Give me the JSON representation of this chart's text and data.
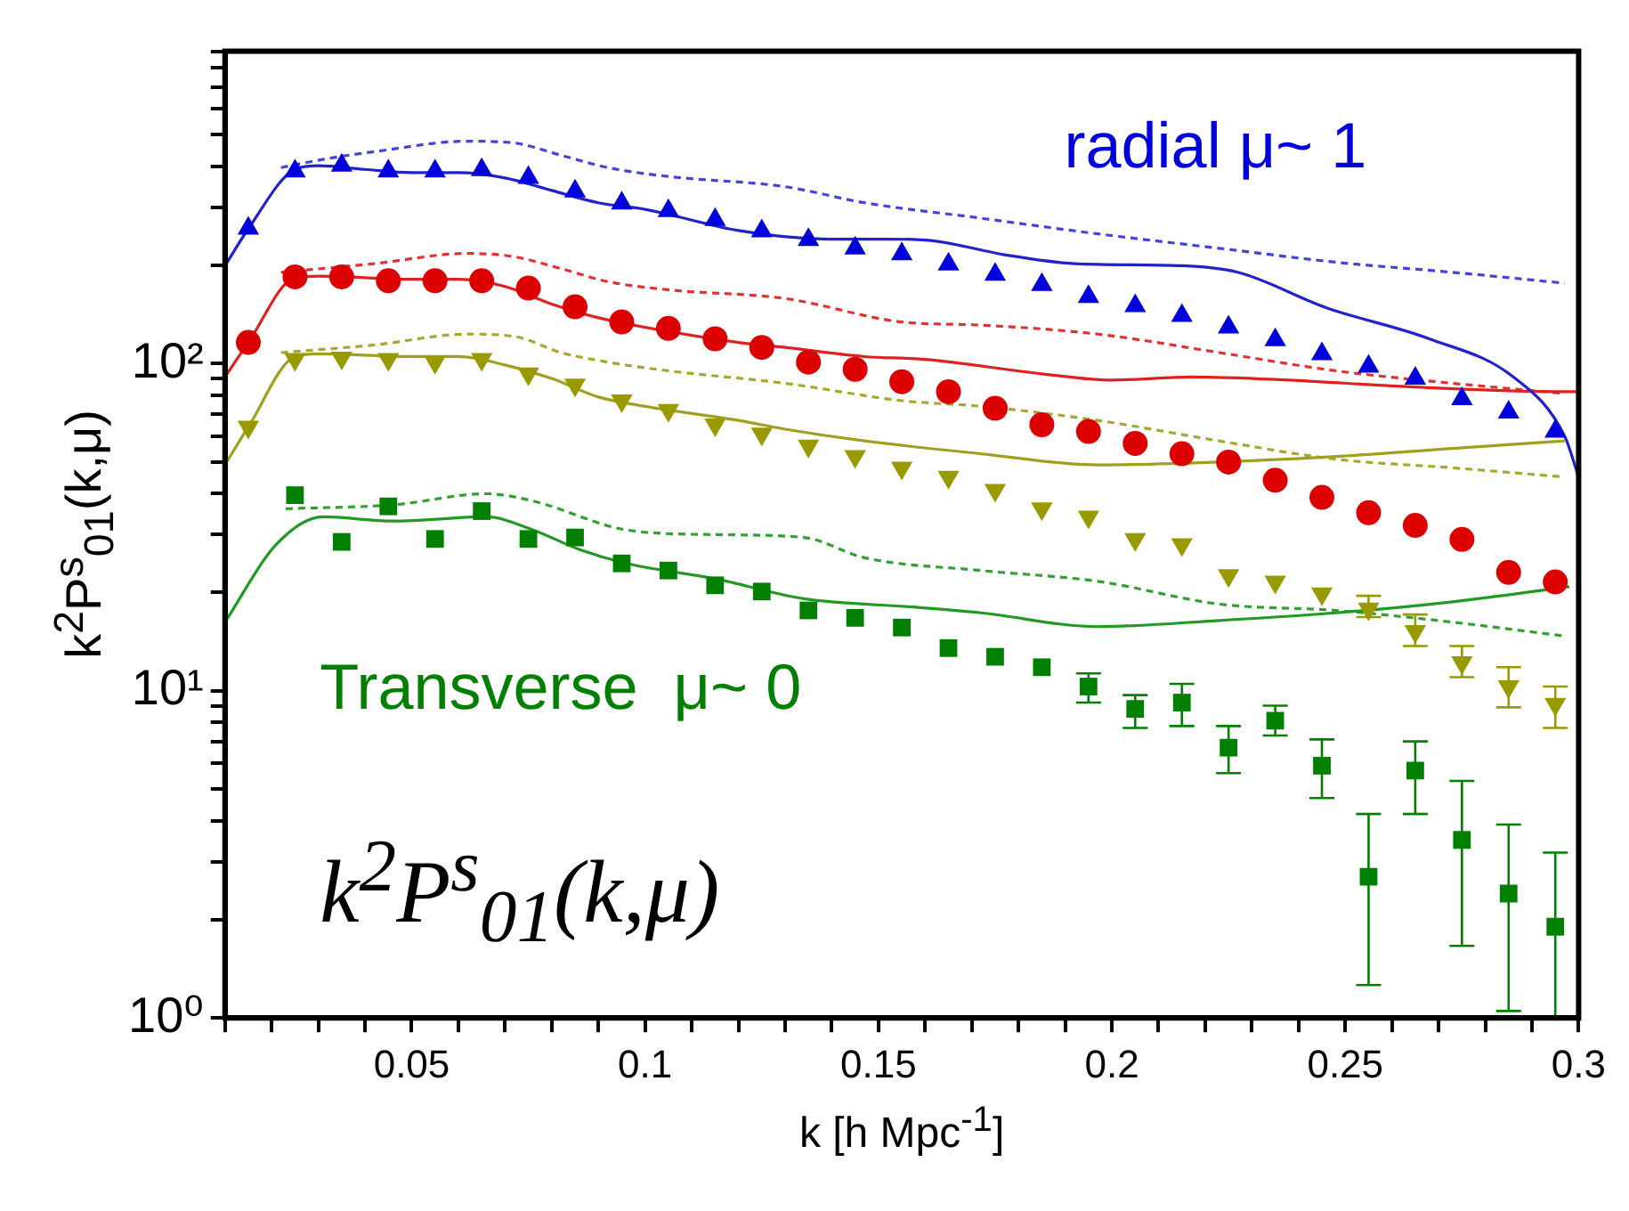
{
  "chart_data": {
    "type": "scatter",
    "xlabel": "k [h Mpc$^{-1}$]",
    "ylabel": "k$^{2}$P$^{s}$$_{01}$(k,μ)",
    "log": "y",
    "grid": false,
    "legend": false,
    "xlim": [
      0.01,
      0.3
    ],
    "xticks": [
      {
        "value": 0.01,
        "label": null
      },
      {
        "value": 0.02,
        "label": null
      },
      {
        "value": 0.03,
        "label": null
      },
      {
        "value": 0.04,
        "label": null
      },
      {
        "value": 0.05,
        "label": "0.05"
      },
      {
        "value": 0.06,
        "label": null
      },
      {
        "value": 0.07,
        "label": null
      },
      {
        "value": 0.08,
        "label": null
      },
      {
        "value": 0.09,
        "label": null
      },
      {
        "value": 0.1,
        "label": "0.1"
      },
      {
        "value": 0.11,
        "label": null
      },
      {
        "value": 0.12,
        "label": null
      },
      {
        "value": 0.13,
        "label": null
      },
      {
        "value": 0.14,
        "label": null
      },
      {
        "value": 0.15,
        "label": "0.15"
      },
      {
        "value": 0.16,
        "label": null
      },
      {
        "value": 0.17,
        "label": null
      },
      {
        "value": 0.18,
        "label": null
      },
      {
        "value": 0.19,
        "label": null
      },
      {
        "value": 0.2,
        "label": "0.2"
      },
      {
        "value": 0.21,
        "label": null
      },
      {
        "value": 0.22,
        "label": null
      },
      {
        "value": 0.23,
        "label": null
      },
      {
        "value": 0.24,
        "label": null
      },
      {
        "value": 0.25,
        "label": "0.25"
      },
      {
        "value": 0.26,
        "label": null
      },
      {
        "value": 0.27,
        "label": null
      },
      {
        "value": 0.28,
        "label": null
      },
      {
        "value": 0.29,
        "label": null
      },
      {
        "value": 0.3,
        "label": "0.3"
      }
    ],
    "ylim": [
      1,
      900
    ],
    "yticks": [
      {
        "value": 1,
        "label": "10⁰"
      },
      {
        "value": 2,
        "label": null
      },
      {
        "value": 3,
        "label": null
      },
      {
        "value": 4,
        "label": null
      },
      {
        "value": 5,
        "label": null
      },
      {
        "value": 6,
        "label": null
      },
      {
        "value": 7,
        "label": null
      },
      {
        "value": 8,
        "label": null
      },
      {
        "value": 9,
        "label": null
      },
      {
        "value": 10,
        "label": "10¹"
      },
      {
        "value": 20,
        "label": null
      },
      {
        "value": 30,
        "label": null
      },
      {
        "value": 40,
        "label": null
      },
      {
        "value": 50,
        "label": null
      },
      {
        "value": 60,
        "label": null
      },
      {
        "value": 70,
        "label": null
      },
      {
        "value": 80,
        "label": null
      },
      {
        "value": 90,
        "label": null
      },
      {
        "value": 100,
        "label": "10²"
      },
      {
        "value": 200,
        "label": null
      },
      {
        "value": 300,
        "label": null
      },
      {
        "value": 400,
        "label": null
      },
      {
        "value": 500,
        "label": null
      },
      {
        "value": 600,
        "label": null
      },
      {
        "value": 700,
        "label": null
      },
      {
        "value": 800,
        "label": null
      },
      {
        "value": 900,
        "label": null
      }
    ],
    "x": [
      0.015,
      0.025,
      0.035,
      0.045,
      0.055,
      0.065,
      0.075,
      0.085,
      0.095,
      0.105,
      0.115,
      0.125,
      0.135,
      0.145,
      0.155,
      0.165,
      0.175,
      0.185,
      0.195,
      0.205,
      0.215,
      0.225,
      0.235,
      0.245,
      0.255,
      0.265,
      0.275,
      0.285,
      0.295
    ],
    "series": [
      {
        "type": "scatter",
        "color": "#0000dd",
        "marker": "triangle",
        "values": [
          259,
          387,
          403,
          387,
          387,
          391,
          370,
          336,
          309,
          293,
          275,
          254,
          239,
          225,
          216,
          201,
          187,
          174,
          160,
          150,
          140,
          129,
          118,
          107,
          98,
          90,
          78,
          71,
          62
        ]
      },
      {
        "type": "scatter",
        "color": "#dd0000",
        "marker": "circle",
        "values": [
          116,
          184,
          184,
          179,
          179,
          179,
          170,
          149,
          134,
          128,
          119,
          112,
          101,
          96,
          88,
          82,
          73,
          65,
          62,
          57,
          53,
          50,
          44,
          39,
          35,
          32,
          29,
          23,
          21.5
        ]
      },
      {
        "type": "scatter",
        "color": "#999900",
        "marker": "triangle-down",
        "values": [
          64,
          103,
          104,
          103,
          101,
          103,
          93,
          86,
          77,
          72,
          65,
          61,
          56,
          52,
          48,
          45,
          41,
          36,
          34,
          29,
          28,
          22.5,
          21.5,
          19.8,
          17.8,
          15.2,
          12.2,
          10.3,
          9.1
        ],
        "errors": [
          null,
          null,
          null,
          null,
          null,
          null,
          null,
          null,
          null,
          null,
          null,
          null,
          null,
          null,
          null,
          null,
          null,
          null,
          null,
          null,
          null,
          null,
          null,
          null,
          [
            16.8,
            19.5
          ],
          [
            13.7,
            17.1
          ],
          [
            11.0,
            13.7
          ],
          [
            8.9,
            11.8
          ],
          [
            7.7,
            10.3
          ]
        ]
      },
      {
        "type": "scatter",
        "color": "#008000",
        "marker": "square",
        "values": [
          null,
          39.6,
          28.5,
          36.6,
          29.1,
          35.4,
          29.1,
          29.4,
          24.5,
          23.3,
          21.0,
          20.1,
          17.6,
          16.7,
          15.6,
          13.5,
          12.7,
          11.8,
          10.3,
          8.8,
          9.2,
          6.7,
          8.1,
          5.9,
          2.7,
          5.7,
          3.5,
          2.4,
          1.9
        ],
        "errors": [
          null,
          null,
          null,
          null,
          null,
          null,
          null,
          null,
          null,
          null,
          null,
          null,
          null,
          null,
          null,
          null,
          null,
          null,
          [
            9.2,
            11.3
          ],
          [
            7.7,
            9.7
          ],
          [
            7.8,
            10.5
          ],
          [
            5.6,
            7.8
          ],
          [
            7.3,
            9.0
          ],
          [
            4.7,
            7.1
          ],
          [
            1.26,
            4.2
          ],
          [
            4.2,
            7.0
          ],
          [
            1.66,
            5.3
          ],
          [
            1.05,
            3.9
          ],
          [
            1,
            3.2
          ]
        ]
      },
      {
        "type": "line",
        "color": "#2222cc",
        "line_style": "solid",
        "x": [
          0.01,
          0.015,
          0.025,
          0.03,
          0.04,
          0.05,
          0.06,
          0.07,
          0.08,
          0.09,
          0.1,
          0.12,
          0.14,
          0.152,
          0.162,
          0.177,
          0.192,
          0.215,
          0.227,
          0.246,
          0.268,
          0.286,
          0.297,
          0.3
        ],
        "values": [
          199,
          258,
          392,
          402,
          392,
          383,
          383,
          369,
          338,
          310,
          296,
          255,
          240,
          240,
          237,
          215,
          202,
          199,
          190,
          148,
          119,
          91,
          60,
          45
        ]
      },
      {
        "type": "line",
        "color": "#4444dd",
        "line_style": "dashed",
        "x": [
          0.022,
          0.032,
          0.042,
          0.062,
          0.072,
          0.082,
          0.092,
          0.105,
          0.13,
          0.147,
          0.172,
          0.197,
          0.223,
          0.248,
          0.273,
          0.297
        ],
        "values": [
          397,
          423,
          444,
          478,
          472,
          433,
          397,
          373,
          347,
          310,
          278,
          249,
          225,
          204,
          190,
          176
        ]
      },
      {
        "type": "line",
        "color": "#dd2222",
        "line_style": "solid",
        "x": [
          0.01,
          0.015,
          0.025,
          0.03,
          0.05,
          0.06,
          0.07,
          0.08,
          0.09,
          0.1,
          0.12,
          0.13,
          0.147,
          0.16,
          0.185,
          0.2,
          0.217,
          0.238,
          0.263,
          0.297,
          0.3
        ],
        "values": [
          91,
          116,
          183,
          185,
          181,
          181,
          172,
          152,
          138,
          129,
          116,
          112,
          105,
          103,
          93,
          89,
          91,
          89,
          85,
          82,
          82
        ]
      },
      {
        "type": "line",
        "color": "#dd3333",
        "line_style": "dashed",
        "x": [
          0.022,
          0.042,
          0.062,
          0.072,
          0.082,
          0.092,
          0.105,
          0.13,
          0.155,
          0.172,
          0.197,
          0.223,
          0.248,
          0.273,
          0.297
        ],
        "values": [
          190,
          202,
          217,
          212,
          195,
          178,
          168,
          158,
          134,
          131,
          123,
          108,
          95,
          87,
          81
        ]
      },
      {
        "type": "line",
        "color": "#a0a020",
        "line_style": "solid",
        "x": [
          0.01,
          0.015,
          0.025,
          0.03,
          0.05,
          0.06,
          0.07,
          0.08,
          0.09,
          0.1,
          0.12,
          0.13,
          0.147,
          0.172,
          0.197,
          0.223,
          0.248,
          0.273,
          0.297
        ],
        "values": [
          49,
          64,
          105,
          107,
          105,
          105,
          99,
          90,
          79,
          74,
          67,
          63,
          58,
          53,
          49,
          50,
          52,
          55,
          58
        ]
      },
      {
        "type": "line",
        "color": "#a8a830",
        "line_style": "dashed",
        "x": [
          0.022,
          0.042,
          0.062,
          0.072,
          0.082,
          0.092,
          0.105,
          0.13,
          0.155,
          0.172,
          0.197,
          0.223,
          0.248,
          0.273,
          0.297
        ],
        "values": [
          108,
          114,
          123,
          121,
          108,
          101,
          95,
          87,
          77,
          74,
          67,
          58,
          51,
          48,
          45
        ]
      },
      {
        "type": "line",
        "color": "#229922",
        "line_style": "solid",
        "x": [
          0.01,
          0.021,
          0.031,
          0.046,
          0.066,
          0.076,
          0.086,
          0.096,
          0.115,
          0.134,
          0.158,
          0.172,
          0.197,
          0.223,
          0.248,
          0.273,
          0.298
        ],
        "values": [
          16.2,
          28,
          34,
          33,
          34,
          31,
          27,
          24.5,
          22,
          19.1,
          18.0,
          17.3,
          15.7,
          16.4,
          17.3,
          18.7,
          20.8
        ]
      },
      {
        "type": "line",
        "color": "#33a033",
        "line_style": "dashed",
        "x": [
          0.023,
          0.046,
          0.066,
          0.076,
          0.096,
          0.115,
          0.134,
          0.147,
          0.172,
          0.197,
          0.223,
          0.248,
          0.273,
          0.297
        ],
        "values": [
          36,
          37,
          40,
          38,
          31,
          30,
          29.4,
          25.5,
          23.3,
          21.6,
          18.4,
          17.6,
          16.2,
          14.7
        ]
      }
    ],
    "annotations": [
      "radial μ~ 1",
      "Transverse  μ~ 0",
      "k$^{2}$P$^{s}$$_{01}$(k,μ)"
    ]
  }
}
